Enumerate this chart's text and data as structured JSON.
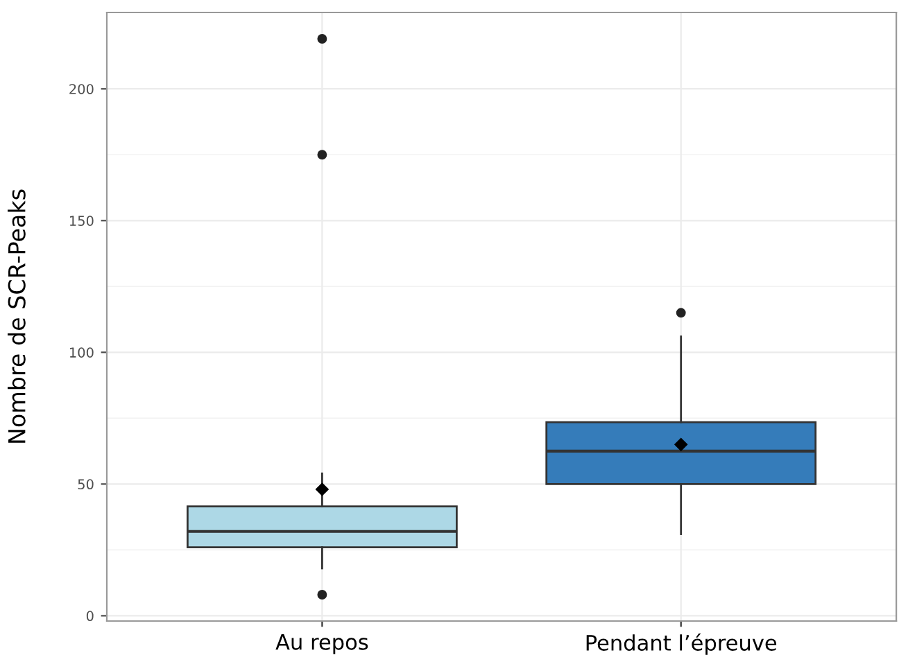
{
  "chart_data": {
    "type": "box",
    "ylabel": "Nombre de SCR-Peaks",
    "categories": [
      "Au repos",
      "Pendant l’épreuve"
    ],
    "colors": [
      "#add8e6",
      "#357cba"
    ],
    "boxes": [
      {
        "low": 18,
        "q1": 26,
        "median": 32,
        "q3": 41.5,
        "high": 54,
        "mean": 48,
        "outliers": [
          8,
          175,
          219
        ]
      },
      {
        "low": 31,
        "q1": 50,
        "median": 62.5,
        "q3": 73.5,
        "high": 106,
        "mean": 65,
        "outliers": [
          115
        ]
      }
    ],
    "ylim": [
      -2,
      229
    ],
    "yticks": [
      0,
      50,
      100,
      150,
      200
    ],
    "grid": true
  }
}
